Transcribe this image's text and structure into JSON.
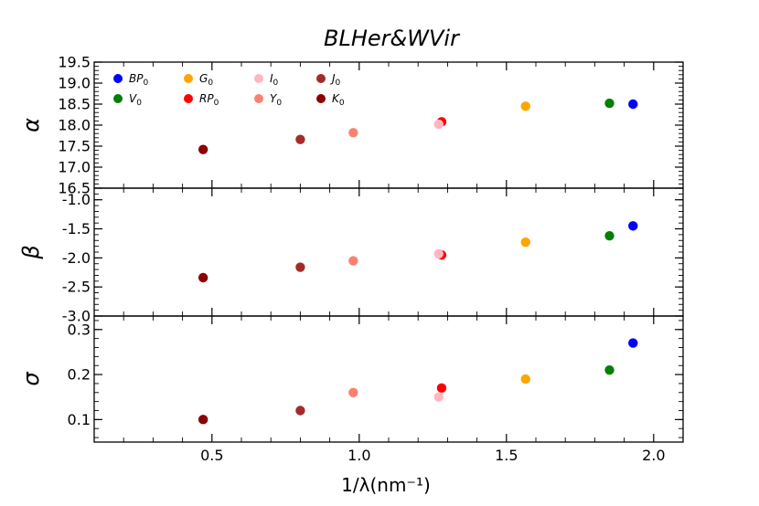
{
  "chart_data": {
    "type": "scatter",
    "title": "BLHer&WVir",
    "xlabel": "1/λ(nm⁻¹)",
    "xlim": [
      0.1,
      2.1
    ],
    "xticks": [
      "0.5",
      "1.0",
      "1.5",
      "2.0"
    ],
    "xtick_values": [
      0.5,
      1.0,
      1.5,
      2.0
    ],
    "legend": {
      "location": "upper-left",
      "entries": [
        {
          "key": "BP",
          "main": "BP",
          "sub": "0",
          "color": "#0000ff"
        },
        {
          "key": "G",
          "main": "G",
          "sub": "0",
          "color": "#ffa500"
        },
        {
          "key": "I",
          "main": "I",
          "sub": "0",
          "color": "#ffb6c1"
        },
        {
          "key": "J",
          "main": "J",
          "sub": "0",
          "color": "#a52a2a"
        },
        {
          "key": "V",
          "main": "V",
          "sub": "0",
          "color": "#008000"
        },
        {
          "key": "RP",
          "main": "RP",
          "sub": "0",
          "color": "#ff0000"
        },
        {
          "key": "Y",
          "main": "Y",
          "sub": "0",
          "color": "#fa8072"
        },
        {
          "key": "K",
          "main": "K",
          "sub": "0",
          "color": "#8b0000"
        }
      ]
    },
    "points_x": {
      "BP": 1.93,
      "V": 1.85,
      "G": 1.565,
      "RP": 1.28,
      "I": 1.27,
      "Y": 0.98,
      "J": 0.8,
      "K": 0.47
    },
    "panels": [
      {
        "name": "alpha",
        "ylabel": "α",
        "ylim": [
          16.5,
          19.5
        ],
        "yticks": [
          "16.5",
          "17.0",
          "17.5",
          "18.0",
          "18.5",
          "19.0",
          "19.5"
        ],
        "ytick_values": [
          16.5,
          17.0,
          17.5,
          18.0,
          18.5,
          19.0,
          19.5
        ],
        "values": {
          "BP": 18.5,
          "V": 18.52,
          "G": 18.45,
          "RP": 18.08,
          "I": 18.02,
          "Y": 17.82,
          "J": 17.66,
          "K": 17.42
        }
      },
      {
        "name": "beta",
        "ylabel": "β",
        "ylim": [
          -3.0,
          -0.8
        ],
        "yticks": [
          "-3.0",
          "-2.5",
          "-2.0",
          "-1.5",
          "-1.0"
        ],
        "ytick_values": [
          -3.0,
          -2.5,
          -2.0,
          -1.5,
          -1.0
        ],
        "values": {
          "BP": -1.45,
          "V": -1.62,
          "G": -1.73,
          "RP": -1.95,
          "I": -1.93,
          "Y": -2.05,
          "J": -2.16,
          "K": -2.34
        }
      },
      {
        "name": "sigma",
        "ylabel": "σ",
        "ylim": [
          0.05,
          0.33
        ],
        "yticks": [
          "0.1",
          "0.2",
          "0.3"
        ],
        "ytick_values": [
          0.1,
          0.2,
          0.3
        ],
        "values": {
          "BP": 0.27,
          "V": 0.21,
          "G": 0.19,
          "RP": 0.17,
          "I": 0.15,
          "Y": 0.16,
          "J": 0.12,
          "K": 0.1
        }
      }
    ]
  }
}
